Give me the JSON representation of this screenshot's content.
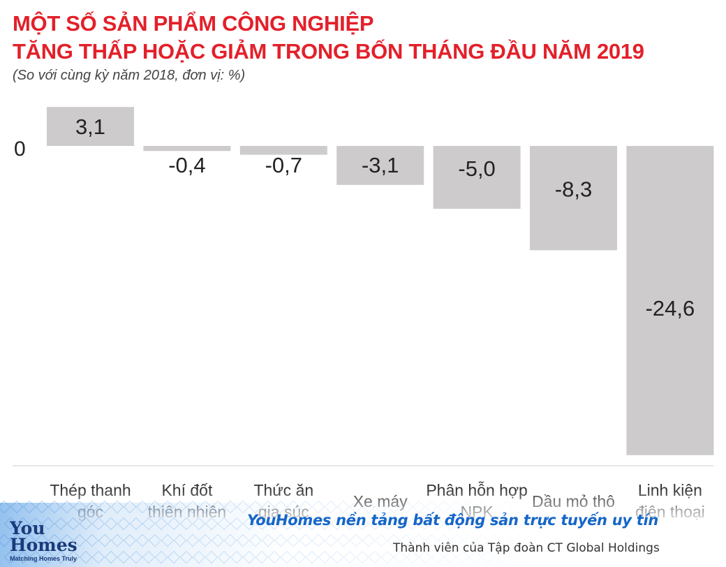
{
  "header": {
    "title_line1": "MỘT SỐ SẢN PHẨM CÔNG NGHIỆP",
    "title_line2": "TĂNG THẤP HOẶC GIẢM TRONG BỐN THÁNG ĐẦU NĂM 2019",
    "subtitle": "(So với cùng kỳ năm 2018, đơn vị: %)"
  },
  "chart_data": {
    "type": "bar",
    "title": "MỘT SỐ SẢN PHẨM CÔNG NGHIỆP TĂNG THẤP HOẶC GIẢM TRONG BỐN THÁNG ĐẦU NĂM 2019",
    "subtitle": "(So với cùng kỳ năm 2018, đơn vị: %)",
    "categories": [
      [
        "Thép thanh",
        "góc"
      ],
      [
        "Khí đốt",
        "thiên nhiên"
      ],
      [
        "Thức ăn",
        "gia súc"
      ],
      [
        "Xe máy"
      ],
      [
        "Phân hỗn hợp",
        "NPK"
      ],
      [
        "Dầu mỏ thô"
      ],
      [
        "Linh kiện",
        "điện thoại"
      ]
    ],
    "values": [
      3.1,
      -0.4,
      -0.7,
      -3.1,
      -5.0,
      -8.3,
      -24.6
    ],
    "value_labels": [
      "3,1",
      "-0,4",
      "-0,7",
      "-3,1",
      "-5,0",
      "-8,3",
      "-24,6"
    ],
    "zero_label": "0",
    "ylim": [
      -24.6,
      3.1
    ],
    "grid": false,
    "legend": "none",
    "colors": {
      "bar": "#cdcbcc",
      "label": "#222222",
      "baseline": "#dddddd"
    }
  },
  "footer": {
    "logo_line1": "You",
    "logo_line2": "Homes",
    "logo_tagline": "Matching Homes Truly",
    "promo": "YouHomes nền tảng bất động sản trực tuyến uy tín",
    "member": "Thành viên của Tập đoàn CT Global Holdings",
    "colors": {
      "brand": "#1a3a7a",
      "promo": "#1666c8",
      "pattern": "#2e86de"
    }
  }
}
